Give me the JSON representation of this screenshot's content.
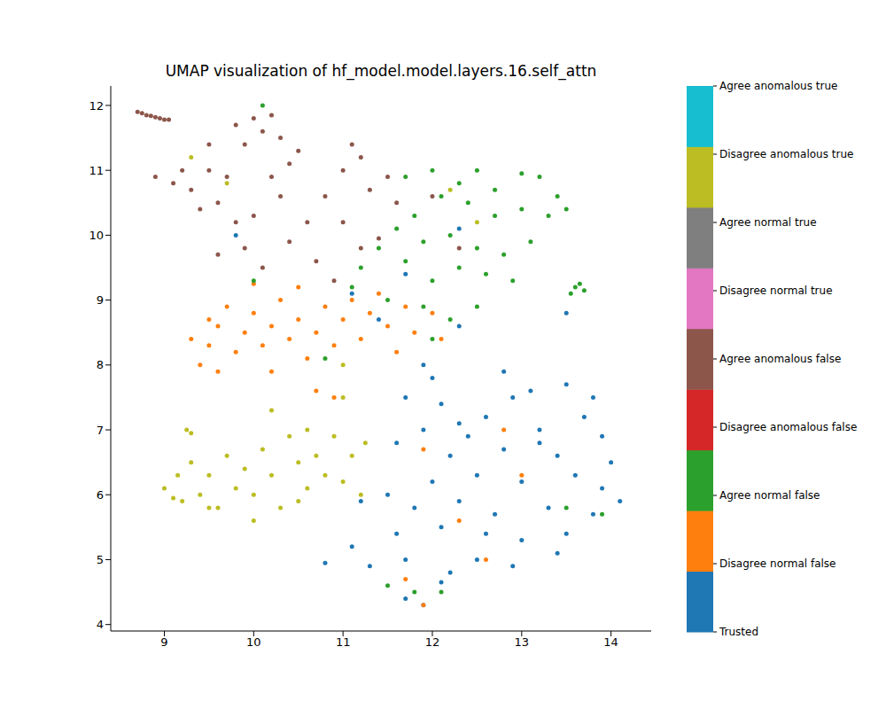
{
  "chart_data": {
    "type": "scatter",
    "title": "UMAP visualization of hf_model.model.layers.16.self_attn",
    "xlim": [
      8.4,
      14.45
    ],
    "xticks": [
      9,
      10,
      11,
      12,
      13,
      14
    ],
    "ylim": [
      3.9,
      12.3
    ],
    "yticks": [
      4,
      5,
      6,
      7,
      8,
      9,
      10,
      11,
      12
    ],
    "legend": "right",
    "marker": "circle",
    "series": [
      {
        "name": "Trusted",
        "color": "#1f77b4",
        "x": [
          12.1,
          12.6,
          12.9,
          13.1,
          13.5,
          13.8,
          13.7,
          13.2,
          12.4,
          11.9,
          11.6,
          12.2,
          12.8,
          13.4,
          13.9,
          14.0,
          13.6,
          13.0,
          12.5,
          12.0,
          11.5,
          11.2,
          11.8,
          12.3,
          12.7,
          13.3,
          13.8,
          14.1,
          13.5,
          13.0,
          12.6,
          12.1,
          11.6,
          11.1,
          10.8,
          11.3,
          11.7,
          12.2,
          12.5,
          12.1,
          11.7,
          11.9,
          12.9,
          13.4,
          13.9,
          13.2,
          12.3,
          11.7,
          12.0,
          11.9,
          12.8,
          12.3,
          11.7,
          12.3,
          11.1,
          13.5,
          11.4,
          9.8
        ],
        "values": [
          7.4,
          7.2,
          7.5,
          7.6,
          7.7,
          7.5,
          7.2,
          7.0,
          6.9,
          7.0,
          6.8,
          6.6,
          6.7,
          6.6,
          6.9,
          6.5,
          6.3,
          6.2,
          6.3,
          6.2,
          6.0,
          5.9,
          5.8,
          5.9,
          5.7,
          5.8,
          5.7,
          5.9,
          5.4,
          5.3,
          5.4,
          5.5,
          5.4,
          5.2,
          4.95,
          4.9,
          5.0,
          4.8,
          5.0,
          4.65,
          4.4,
          4.3,
          4.9,
          5.1,
          6.1,
          6.8,
          7.1,
          7.5,
          7.8,
          8.0,
          7.9,
          8.6,
          9.4,
          10.1,
          9.1,
          8.8,
          8.7,
          10.0
        ]
      },
      {
        "name": "Disagree normal false",
        "color": "#ff7f0e",
        "x": [
          9.3,
          9.5,
          9.6,
          9.7,
          9.8,
          9.9,
          10.0,
          10.1,
          10.2,
          10.3,
          10.4,
          10.5,
          10.5,
          10.6,
          10.7,
          10.8,
          10.9,
          11.0,
          11.1,
          11.2,
          11.3,
          11.4,
          11.5,
          11.6,
          11.7,
          11.8,
          12.0,
          12.1,
          9.4,
          9.6,
          10.2,
          10.7,
          9.5,
          10.0,
          11.9,
          12.3,
          12.8,
          13.0,
          11.9,
          12.6,
          11.7,
          10.9
        ],
        "values": [
          8.4,
          8.3,
          8.6,
          8.9,
          8.2,
          8.5,
          8.8,
          8.3,
          8.6,
          9.0,
          8.4,
          8.7,
          9.2,
          8.1,
          8.5,
          8.9,
          8.3,
          8.7,
          9.0,
          8.4,
          8.8,
          9.1,
          8.6,
          8.2,
          8.9,
          8.5,
          8.8,
          8.4,
          8.0,
          7.9,
          7.9,
          7.6,
          8.7,
          9.25,
          4.3,
          5.6,
          7.0,
          6.3,
          6.7,
          5.0,
          4.7,
          7.5
        ]
      },
      {
        "name": "Agree normal false",
        "color": "#2ca02c",
        "x": [
          11.7,
          12.0,
          12.3,
          12.5,
          12.7,
          13.0,
          13.2,
          13.4,
          13.5,
          13.3,
          13.0,
          12.7,
          12.4,
          12.1,
          11.8,
          11.6,
          11.9,
          12.2,
          12.5,
          12.8,
          13.1,
          12.6,
          12.3,
          12.0,
          11.7,
          11.4,
          11.2,
          11.1,
          11.5,
          11.9,
          12.2,
          12.5,
          12.9,
          12.0,
          13.6,
          13.65,
          13.7,
          13.55,
          10.0,
          10.8,
          13.5,
          13.9,
          12.1,
          11.8,
          11.5,
          10.1
        ],
        "values": [
          10.9,
          11.0,
          10.8,
          11.0,
          10.7,
          10.95,
          10.9,
          10.6,
          10.4,
          10.3,
          10.4,
          10.3,
          10.5,
          10.6,
          10.3,
          10.1,
          9.9,
          10.0,
          9.8,
          9.7,
          9.9,
          9.4,
          9.5,
          9.3,
          9.6,
          9.8,
          9.5,
          9.2,
          9.0,
          8.9,
          8.7,
          8.9,
          9.3,
          8.4,
          9.2,
          9.25,
          9.15,
          9.1,
          9.3,
          8.1,
          5.8,
          5.7,
          4.5,
          4.5,
          4.6,
          12.0
        ]
      },
      {
        "name": "Disagree anomalous false",
        "color": "#d62728",
        "x": [],
        "values": []
      },
      {
        "name": "Agree anomalous false",
        "color": "#8c564b",
        "x": [
          8.7,
          8.75,
          8.8,
          8.85,
          8.9,
          8.95,
          9.0,
          9.05,
          8.9,
          9.1,
          9.2,
          9.3,
          9.5,
          9.4,
          9.6,
          9.7,
          9.8,
          9.9,
          10.0,
          10.1,
          10.2,
          10.3,
          10.4,
          10.5,
          10.2,
          10.3,
          10.0,
          9.8,
          9.9,
          10.1,
          10.4,
          10.6,
          10.8,
          11.0,
          11.1,
          11.2,
          11.3,
          11.5,
          11.6,
          11.0,
          10.7,
          11.2,
          11.4,
          10.9,
          12.3,
          12.0,
          9.6,
          9.5
        ],
        "values": [
          11.9,
          11.88,
          11.85,
          11.84,
          11.82,
          11.8,
          11.78,
          11.78,
          10.9,
          10.8,
          11.0,
          10.7,
          11.0,
          10.4,
          10.5,
          10.9,
          11.7,
          11.4,
          11.8,
          11.6,
          11.85,
          11.5,
          11.1,
          11.3,
          10.9,
          10.6,
          10.3,
          10.2,
          9.8,
          9.5,
          9.9,
          10.2,
          10.6,
          11.0,
          11.4,
          11.2,
          10.7,
          10.9,
          10.5,
          10.2,
          9.6,
          9.8,
          9.95,
          9.3,
          9.8,
          10.6,
          9.7,
          11.4
        ]
      },
      {
        "name": "Disagree normal true",
        "color": "#e377c2",
        "x": [],
        "values": []
      },
      {
        "name": "Agree normal true",
        "color": "#7f7f7f",
        "x": [],
        "values": []
      },
      {
        "name": "Disagree anomalous true",
        "color": "#bcbd22",
        "x": [
          9.0,
          9.1,
          9.2,
          9.15,
          9.3,
          9.4,
          9.5,
          9.6,
          9.7,
          9.8,
          9.9,
          10.0,
          10.1,
          10.2,
          10.3,
          10.4,
          10.5,
          10.6,
          10.7,
          10.8,
          10.9,
          11.0,
          11.1,
          11.2,
          11.25,
          10.5,
          10.0,
          9.5,
          10.2,
          10.6,
          9.25,
          9.3,
          11.0,
          9.3,
          9.7,
          11.0,
          12.2,
          12.5
        ],
        "values": [
          6.1,
          5.95,
          5.9,
          6.3,
          6.5,
          6.0,
          6.3,
          5.8,
          6.6,
          6.1,
          6.4,
          6.0,
          6.7,
          6.3,
          5.8,
          6.9,
          6.5,
          6.1,
          6.6,
          6.3,
          6.9,
          6.2,
          6.6,
          6.0,
          6.8,
          5.9,
          5.6,
          5.8,
          7.3,
          7.0,
          7.0,
          6.95,
          7.5,
          11.2,
          10.8,
          8.0,
          10.7,
          10.2
        ]
      },
      {
        "name": "Agree anomalous true",
        "color": "#17becf",
        "x": [],
        "values": []
      }
    ]
  }
}
